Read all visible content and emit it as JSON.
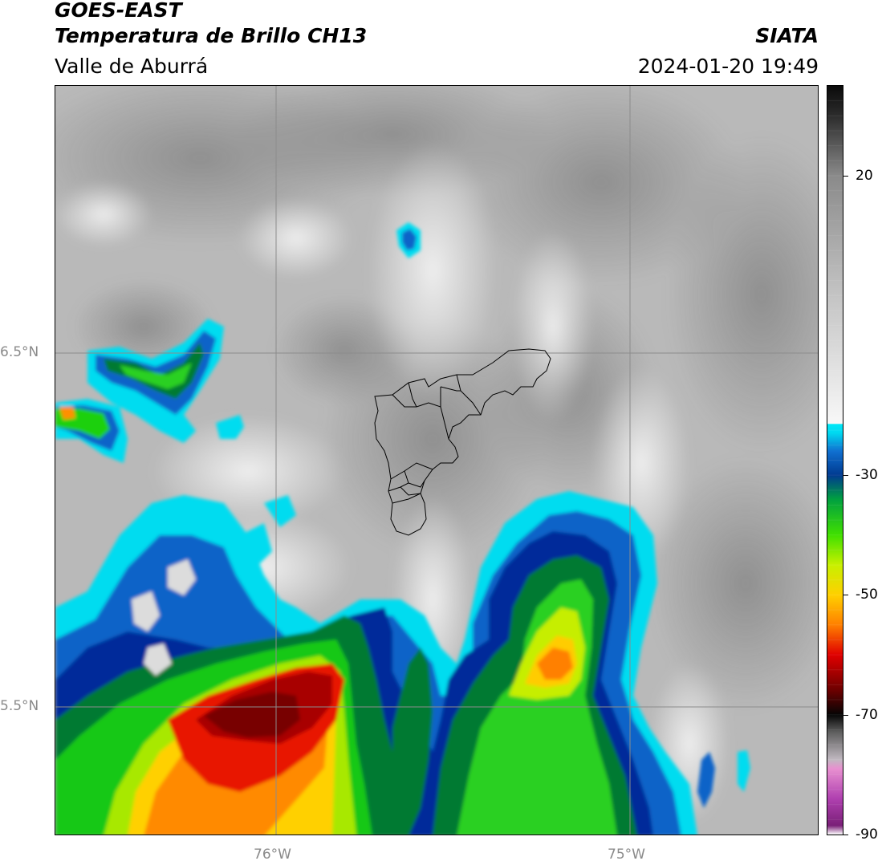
{
  "header": {
    "satellite": "GOES-EAST",
    "product": "Temperatura de Brillo CH13",
    "region": "Valle de Aburrá",
    "agency": "SIATA",
    "datetime": "2024-01-20 19:49"
  },
  "map": {
    "lat_labels": [
      "6.5°N",
      "5.5°N"
    ],
    "lon_labels": [
      "76°W",
      "75°W"
    ],
    "gridline_color": "#8c8c8c",
    "boundary": "Valle de Aburrá municipalities"
  },
  "colorbar": {
    "min": -90,
    "max": 35,
    "tick_labels": [
      "20",
      "-30",
      "-50",
      "-70",
      "-90"
    ],
    "tick_values": [
      20,
      -30,
      -50,
      -70,
      -90
    ],
    "stops": [
      {
        "v": -90,
        "c": "#ffffff"
      },
      {
        "v": -88.5,
        "c": "#7a1f78"
      },
      {
        "v": -84,
        "c": "#b040b0"
      },
      {
        "v": -79,
        "c": "#e890d0"
      },
      {
        "v": -77.5,
        "c": "#c0b8c0"
      },
      {
        "v": -73,
        "c": "#606060"
      },
      {
        "v": -70,
        "c": "#050505"
      },
      {
        "v": -66,
        "c": "#6a0000"
      },
      {
        "v": -60,
        "c": "#e00000"
      },
      {
        "v": -55,
        "c": "#ff8000"
      },
      {
        "v": -50,
        "c": "#ffd000"
      },
      {
        "v": -45,
        "c": "#c8f000"
      },
      {
        "v": -40,
        "c": "#40e000"
      },
      {
        "v": -34,
        "c": "#00a040"
      },
      {
        "v": -30,
        "c": "#003a90"
      },
      {
        "v": -26,
        "c": "#1070d0"
      },
      {
        "v": -23,
        "c": "#00d8f0"
      },
      {
        "v": -21.5,
        "c": "#00e8f8"
      },
      {
        "v": -21.4,
        "c": "#f8f8f8"
      },
      {
        "v": 0,
        "c": "#c4c4c4"
      },
      {
        "v": 20,
        "c": "#8a8a8a"
      },
      {
        "v": 30,
        "c": "#2c2c2c"
      },
      {
        "v": 35,
        "c": "#0a0a0a"
      }
    ]
  }
}
